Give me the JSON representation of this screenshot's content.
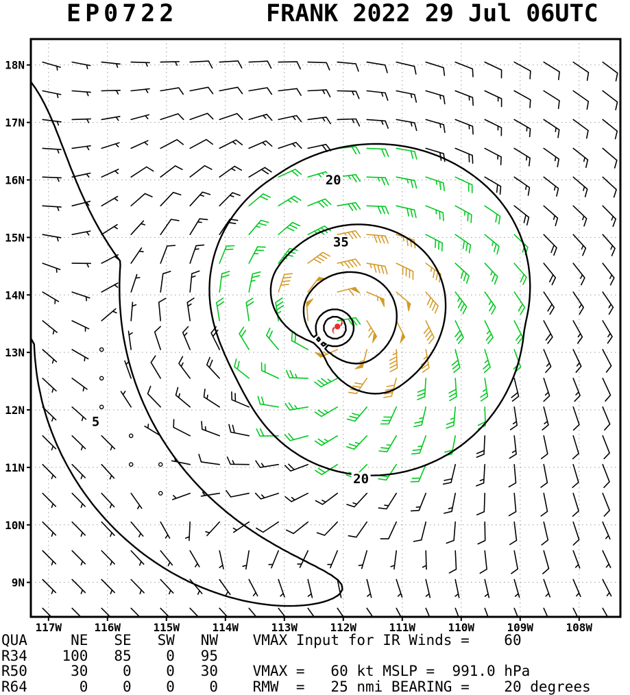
{
  "title": {
    "storm_id": "EP0722",
    "storm_title": "FRANK 2022 29 Jul 06UTC"
  },
  "chart_data": {
    "type": "wind_barb_map",
    "title": "EP0722 FRANK 2022 29 Jul 06UTC",
    "axes": {
      "lon_min": -117.3,
      "lon_max": -107.3,
      "lat_min": 8.4,
      "lat_max": 18.45,
      "grid": "dotted",
      "lon_ticks": [
        {
          "value": -117,
          "label": "117W"
        },
        {
          "value": -116,
          "label": "116W"
        },
        {
          "value": -115,
          "label": "115W"
        },
        {
          "value": -114,
          "label": "114W"
        },
        {
          "value": -113,
          "label": "113W"
        },
        {
          "value": -112,
          "label": "112W"
        },
        {
          "value": -111,
          "label": "111W"
        },
        {
          "value": -110,
          "label": "110W"
        },
        {
          "value": -109,
          "label": "109W"
        },
        {
          "value": -108,
          "label": "108W"
        }
      ],
      "lat_ticks": [
        {
          "value": 9,
          "label": "9N"
        },
        {
          "value": 10,
          "label": "10N"
        },
        {
          "value": 11,
          "label": "11N"
        },
        {
          "value": 12,
          "label": "12N"
        },
        {
          "value": 13,
          "label": "13N"
        },
        {
          "value": 14,
          "label": "14N"
        },
        {
          "value": 15,
          "label": "15N"
        },
        {
          "value": 16,
          "label": "16N"
        },
        {
          "value": 17,
          "label": "17N"
        },
        {
          "value": 18,
          "label": "18N"
        }
      ]
    },
    "storm": {
      "id": "EP0722",
      "name": "FRANK",
      "datetime": "2022 29 Jul 06UTC",
      "center": {
        "lon": -112.1,
        "lat": 13.45
      },
      "vmax_kt": 60,
      "vmax_input_ir_kt": 60,
      "mslp_hpa": "991.0",
      "rmw_nmi": 25,
      "bearing_deg": 20
    },
    "wind_radii": {
      "quadrants": [
        "NE",
        "SE",
        "SW",
        "NW"
      ],
      "rows": [
        {
          "label": "R34",
          "values_nmi": [
            100,
            85,
            0,
            95
          ]
        },
        {
          "label": "R50",
          "values_nmi": [
            30,
            0,
            0,
            30
          ]
        },
        {
          "label": "R64",
          "values_nmi": [
            0,
            0,
            0,
            0
          ]
        }
      ]
    },
    "contours": {
      "levels_kt": [
        5,
        20,
        35,
        50
      ],
      "labels": [
        {
          "text": "20",
          "lon": -112.17,
          "lat": 16.0
        },
        {
          "text": "35",
          "lon": -112.04,
          "lat": 14.92
        },
        {
          "text": "20",
          "lon": -111.7,
          "lat": 10.8
        },
        {
          "text": "5",
          "lon": -116.2,
          "lat": 11.8
        }
      ]
    },
    "barbs": {
      "grid_spacing_deg": 0.5,
      "lon_start": -117.1,
      "lat_start": 8.55,
      "cols": 20,
      "rows": 20,
      "speed_thresholds_kt": [
        20,
        35
      ],
      "colors": {
        "base": "#000000",
        "ge20": "#00c81e",
        "ge35": "#d49a26"
      }
    }
  },
  "symbols": {
    "hurricane": {
      "color": "#e82e2e"
    }
  },
  "info_block": {
    "lines": [
      "QUA     NE   SE   SW   NW    VMAX Input for IR Winds =    60",
      "R34    100   85    0   95",
      "R50     30    0    0   30    VMAX =   60 kt MSLP =  991.0 hPa",
      "R64      0    0    0    0    RMW  =   25 nmi BEARING =    20 degrees"
    ]
  }
}
